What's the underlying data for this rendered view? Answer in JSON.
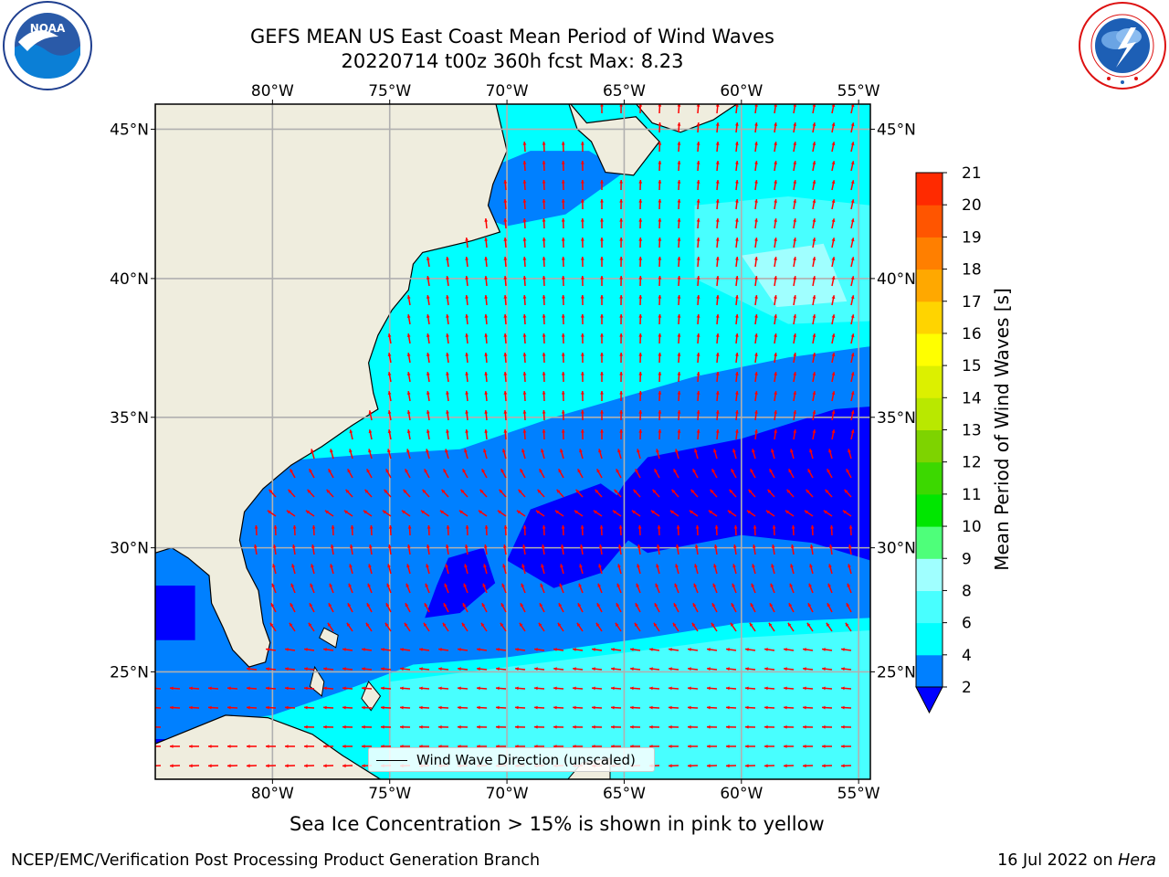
{
  "title": {
    "line1": "GEFS MEAN US East Coast Mean Period of Wind Waves",
    "line2": "20220714 t00z 360h fcst   Max: 8.23"
  },
  "logos": {
    "left": {
      "icon": "noaa-logo",
      "text": "NOAA"
    },
    "right": {
      "icon": "nws-logo"
    }
  },
  "map": {
    "lon_labels": [
      "80°W",
      "75°W",
      "70°W",
      "65°W",
      "60°W",
      "55°W"
    ],
    "lat_labels": [
      "45°N",
      "40°N",
      "35°N",
      "30°N",
      "25°N"
    ],
    "lon_range": [
      -85,
      -54.5
    ],
    "lat_range": [
      20.5,
      45.8
    ],
    "gridlines": true,
    "colors": {
      "land": "#efedde",
      "lt2": "#0000ff",
      "c2_4": "#0080ff",
      "c4_6": "#00ffff",
      "c6_8": "#48ffff",
      "c8_9": "#a0ffff",
      "arrow": "#ff0000",
      "grid": "#b0b0b0"
    }
  },
  "legend": {
    "label": "Wind Wave Direction (unscaled)"
  },
  "colorbar": {
    "label": "Mean Period of Wind Waves [s]",
    "ticks": [
      "2",
      "4",
      "6",
      "8",
      "9",
      "10",
      "11",
      "12",
      "13",
      "14",
      "15",
      "16",
      "17",
      "18",
      "19",
      "20",
      "21"
    ],
    "colors": [
      "#0080ff",
      "#00ffff",
      "#48ffff",
      "#a0ffff",
      "#4eff7a",
      "#00e600",
      "#3cd800",
      "#7ed300",
      "#b9e800",
      "#dcf000",
      "#ffff00",
      "#ffd400",
      "#ffa800",
      "#ff7f00",
      "#ff5500",
      "#ff2a00",
      "#ff0000"
    ],
    "under_color": "#0000ff"
  },
  "note": "Sea Ice Concentration > 15% is shown in pink to yellow",
  "footer": {
    "left": "NCEP/EMC/Verification Post Processing Product Generation Branch",
    "right_prefix": "16 Jul 2022 on ",
    "right_machine": "Hera"
  }
}
